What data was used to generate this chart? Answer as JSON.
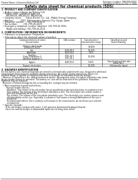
{
  "title": "Safety data sheet for chemical products (SDS)",
  "header_left": "Product Name: Lithium Ion Battery Cell",
  "header_right_l1": "Substance number: SBN-089-00010",
  "header_right_l2": "Established / Revision: Dec.7, 2010",
  "section1_title": "1. PRODUCT AND COMPANY IDENTIFICATION",
  "section1_lines": [
    "  • Product name: Lithium Ion Battery Cell",
    "  • Product code: Cylindrical-type cell",
    "       BR18650U, BR18650U, BR18650A",
    "  • Company name:      Sanyo Electric Co., Ltd., Mobile Energy Company",
    "  • Address:          2031  Kannonyama, Sumoto-City, Hyogo, Japan",
    "  • Telephone number:   +81-799-26-4111",
    "  • Fax number:        +81-799-26-4129",
    "  • Emergency telephone number (daytime) +81-799-26-3062",
    "       (Night and holiday) +81-799-26-4131"
  ],
  "section2_title": "2. COMPOSITION / INFORMATION ON INGREDIENTS",
  "section2_intro": "  • Substance or preparation: Preparation",
  "section2_sub": "  • Information about the chemical nature of product:",
  "table_headers": [
    "Component/chemical name",
    "CAS number",
    "Concentration /\nConcentration range",
    "Classification and\nhazard labeling"
  ],
  "table_subheader": "Several name",
  "table_rows": [
    [
      "Lithium cobalt oxide\n(LiMnxCo(1-x)O2)",
      "-",
      "30-60%",
      "-"
    ],
    [
      "Iron",
      "7439-89-6",
      "15-25%",
      "-"
    ],
    [
      "Aluminum",
      "7429-90-5",
      "2-5%",
      "-"
    ],
    [
      "Graphite\n(Flaky or graphite-I)\n(Artificial graphite-I)",
      "7782-42-5\n7782-44-2",
      "10-20%",
      "-"
    ],
    [
      "Copper",
      "7440-50-8",
      "5-15%",
      "Sensitization of the skin\ngroup No.2"
    ],
    [
      "Organic electrolyte",
      "-",
      "10-20%",
      "Inflammable liquid"
    ]
  ],
  "section3_title": "3. HAZARDS IDENTIFICATION",
  "section3_text": [
    "For this battery cell, chemical materials are stored in a hermetically sealed metal case, designed to withstand",
    "temperatures and pressures-conditions during normal use. As a result, during normal use, there is no",
    "physical danger of ignition or explosion and there is no danger of hazardous materials leakage.",
    "  However, if exposed to a fire, added mechanical shocks, decomposed, when electrolyte stimulates may cause.",
    "As gas toxides cannot be operated. The battery cell case will be breached of fire-pollutants. Hazardous",
    "materials may be released.",
    "  Moreover, if heated strongly by the surrounding fire, acid gas may be emitted."
  ],
  "section3_bullet1": "  • Most important hazard and effects:",
  "section3_human_title": "       Human health effects:",
  "section3_human_lines": [
    "         Inhalation: The release of the electrolyte has an anesthesia action and stimulates in respiratory tract.",
    "         Skin contact: The release of the electrolyte stimulates a skin. The electrolyte skin contact causes a",
    "         sore and stimulation on the skin.",
    "         Eye contact: The release of the electrolyte stimulates eyes. The electrolyte eye contact causes a sore",
    "         and stimulation on the eye. Especially, a substance that causes a strong inflammation of the eye is",
    "         contained.",
    "         Environmental effects: Since a battery cell remains in the environment, do not throw out it into the",
    "         environment."
  ],
  "section3_bullet2": "  • Specific hazards:",
  "section3_specific_lines": [
    "       If the electrolyte contacts with water, it will generate detrimental hydrogen fluoride.",
    "       Since the said electrolyte is inflammable liquid, do not bring close to fire."
  ],
  "bg_color": "#ffffff",
  "text_color": "#1a1a1a",
  "line_color": "#333333"
}
